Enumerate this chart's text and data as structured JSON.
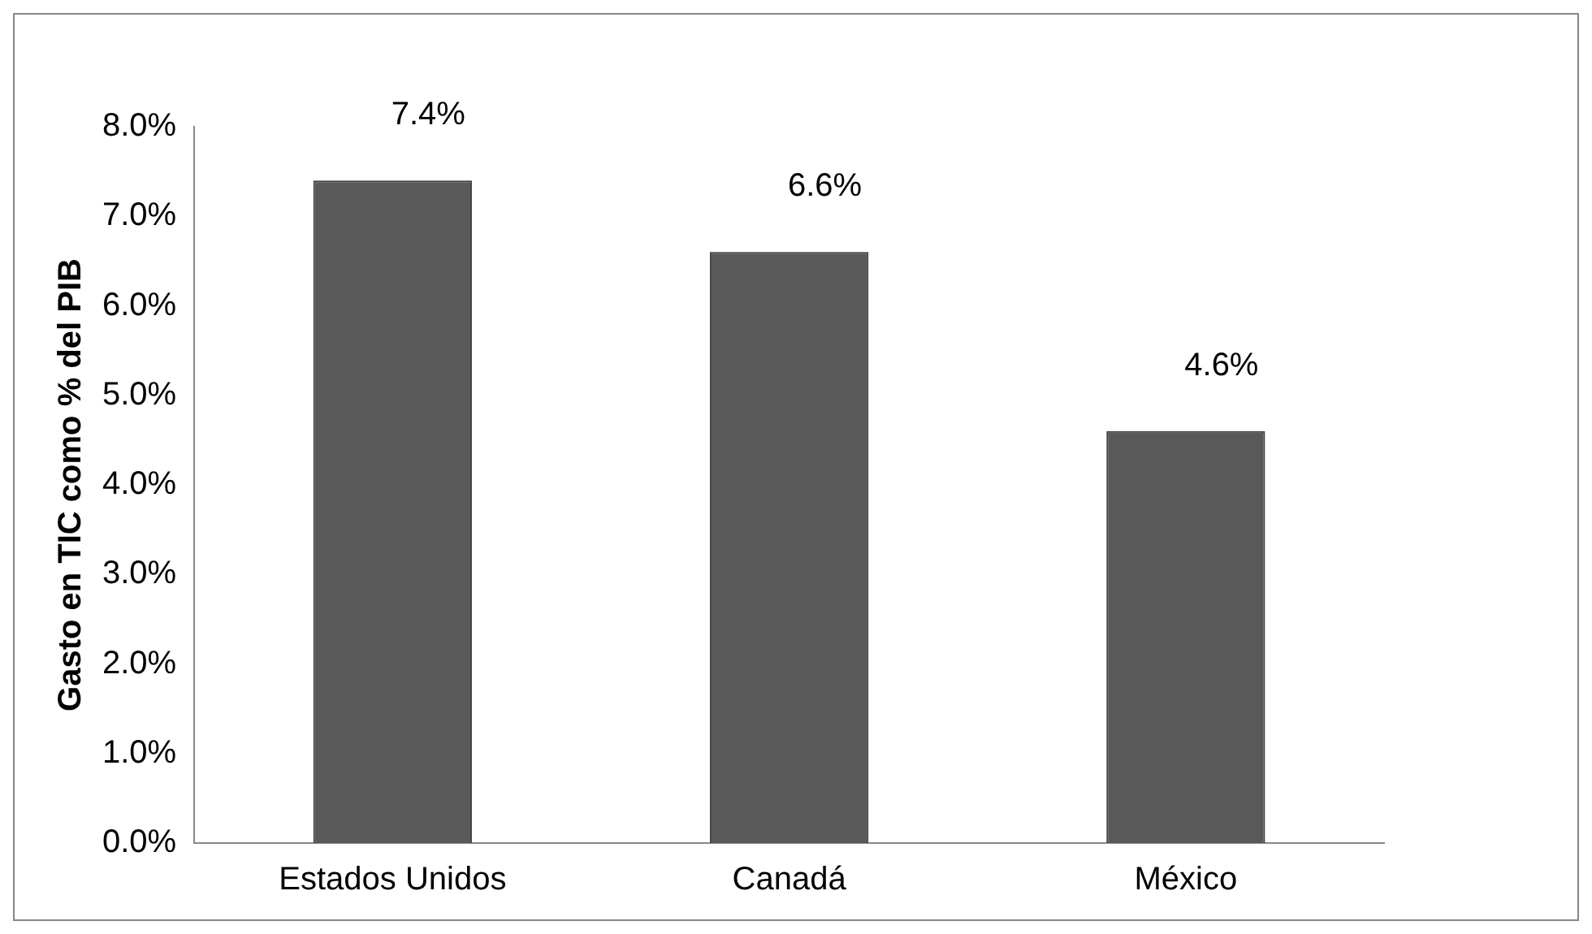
{
  "chart_data": {
    "type": "bar",
    "ylabel": "Gasto en TIC como % del PIB",
    "categories": [
      "Estados Unidos",
      "Canadá",
      "México"
    ],
    "values": [
      7.4,
      6.6,
      4.6
    ],
    "color": "#595959",
    "value_labels": [
      "7.4%",
      "6.6%",
      "4.6%"
    ],
    "ylim": [
      0,
      8
    ],
    "yticks": [
      {
        "value": 0,
        "label": "0.0%"
      },
      {
        "value": 1,
        "label": "1.0%"
      },
      {
        "value": 2,
        "label": "2.0%"
      },
      {
        "value": 3,
        "label": "3.0%"
      },
      {
        "value": 4,
        "label": "4.0%"
      },
      {
        "value": 5,
        "label": "5.0%"
      },
      {
        "value": 6,
        "label": "6.0%"
      },
      {
        "value": 7,
        "label": "7.0%"
      },
      {
        "value": 8,
        "label": "8.0%"
      }
    ],
    "grid": false,
    "legend": false
  }
}
